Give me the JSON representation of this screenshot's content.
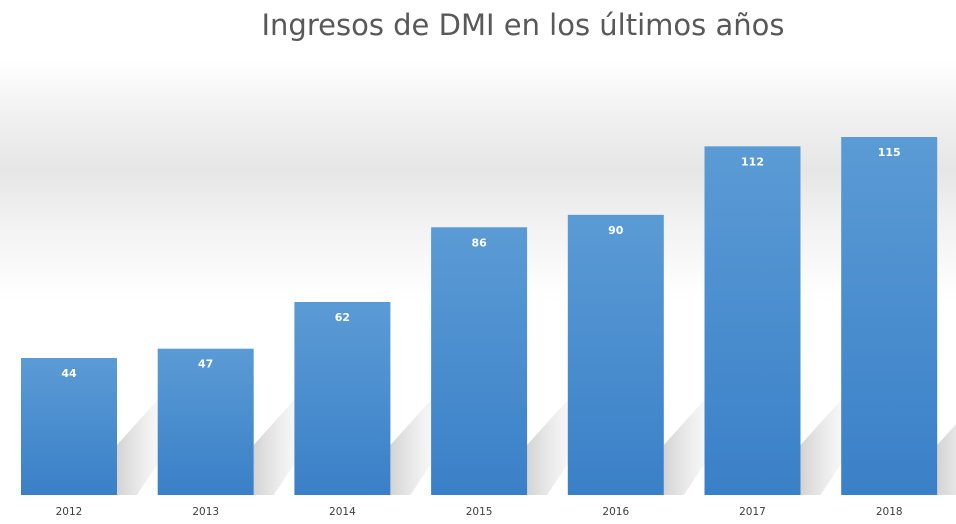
{
  "chart_data": {
    "type": "bar",
    "title": "Ingresos de DMI en los últimos años",
    "categories": [
      "2012",
      "2013",
      "2014",
      "2015",
      "2016",
      "2017",
      "2018"
    ],
    "values": [
      44,
      47,
      62,
      86,
      90,
      112,
      115
    ],
    "xlabel": "",
    "ylabel": "",
    "ylim": [
      0,
      115
    ],
    "grid": false,
    "data_labels": true,
    "colors": {
      "bar_top": "#5b9bd5",
      "bar_bottom": "#3a80c8",
      "label": "#ffffff",
      "tick": "#404040"
    }
  }
}
